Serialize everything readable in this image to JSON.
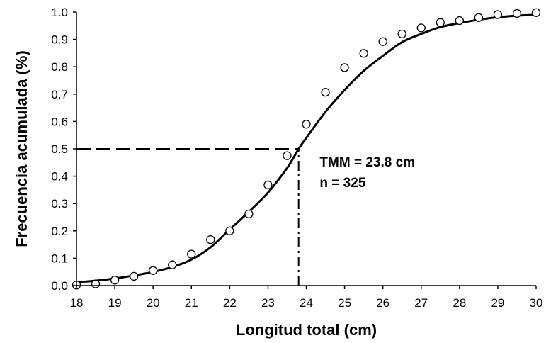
{
  "chart_data": {
    "type": "scatter",
    "title": "",
    "xlabel": "Longitud total (cm)",
    "ylabel": "Frecuencia acumulada (%)",
    "xlim": [
      18,
      30
    ],
    "ylim": [
      0,
      1
    ],
    "x_ticks": [
      "18",
      "19",
      "20",
      "21",
      "22",
      "23",
      "24",
      "25",
      "26",
      "27",
      "28",
      "29",
      "30"
    ],
    "y_ticks": [
      "0.0",
      "0.1",
      "0.2",
      "0.3",
      "0.4",
      "0.5",
      "0.6",
      "0.7",
      "0.8",
      "0.9",
      "1.0"
    ],
    "grid": false,
    "legend": "none",
    "series": [
      {
        "type": "scatter",
        "marker": "open-circle",
        "x": [
          18,
          18.5,
          19,
          19.5,
          20,
          20.5,
          21,
          21.5,
          22,
          22.5,
          23,
          23.5,
          24,
          24.5,
          25,
          25.5,
          26,
          26.5,
          27,
          27.5,
          28,
          28.5,
          29,
          29.5,
          30
        ],
        "y": [
          0.002,
          0.006,
          0.02,
          0.034,
          0.055,
          0.076,
          0.115,
          0.168,
          0.2,
          0.262,
          0.368,
          0.475,
          0.59,
          0.707,
          0.797,
          0.849,
          0.892,
          0.92,
          0.942,
          0.962,
          0.969,
          0.98,
          0.991,
          0.995,
          0.998
        ]
      },
      {
        "type": "line",
        "style": "solid",
        "x": [
          18,
          18.5,
          19,
          19.5,
          20,
          20.5,
          21,
          21.5,
          22,
          22.5,
          23,
          23.5,
          23.8,
          24,
          24.5,
          25,
          25.5,
          26,
          26.5,
          27,
          27.5,
          28,
          28.5,
          29,
          29.5,
          30
        ],
        "y": [
          0.012,
          0.018,
          0.026,
          0.037,
          0.05,
          0.068,
          0.095,
          0.14,
          0.205,
          0.27,
          0.34,
          0.43,
          0.5,
          0.54,
          0.635,
          0.715,
          0.785,
          0.84,
          0.89,
          0.92,
          0.945,
          0.96,
          0.972,
          0.981,
          0.987,
          0.99
        ]
      }
    ],
    "reference_lines": {
      "horizontal": {
        "y": 0.5,
        "x_from": 18,
        "x_to": 23.8,
        "style": "dashed"
      },
      "vertical": {
        "x": 23.8,
        "y_from": 0,
        "y_to": 0.5,
        "style": "dash-dot"
      }
    },
    "annotations": [
      {
        "text": "TMM = 23.8 cm",
        "x": 24.35,
        "y": 0.435
      },
      {
        "text": "n = 325",
        "x": 24.35,
        "y": 0.36
      }
    ]
  }
}
